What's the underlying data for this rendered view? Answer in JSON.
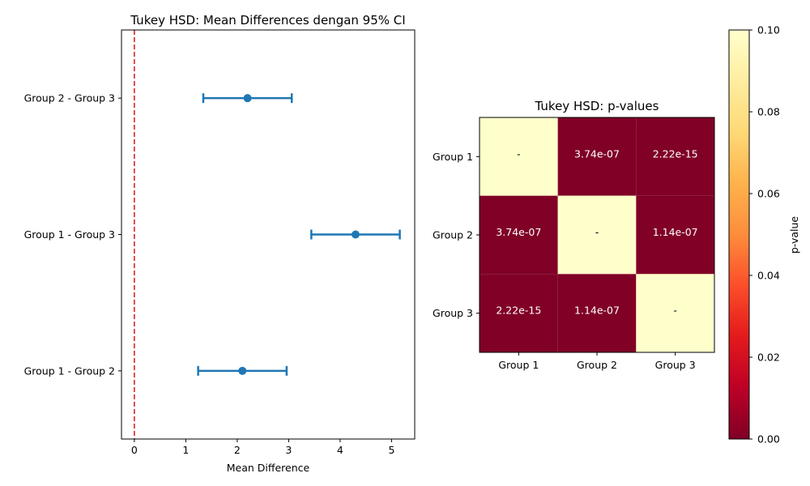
{
  "chart_data": [
    {
      "type": "scatter",
      "title": "Tukey HSD: Mean Differences dengan 95% CI",
      "xlabel": "Mean Difference",
      "ylabel": "",
      "xlim": [
        -0.25,
        5.45
      ],
      "x_ticks": [
        0,
        1,
        2,
        3,
        4,
        5
      ],
      "categories": [
        "Group 1 - Group 2",
        "Group 1 - Group 3",
        "Group 2 - Group 3"
      ],
      "series": [
        {
          "values": [
            2.1,
            4.3,
            2.2
          ],
          "ci_lower": [
            1.24,
            3.44,
            1.34
          ],
          "ci_upper": [
            2.96,
            5.16,
            3.06
          ]
        }
      ],
      "reference_line": {
        "x": 0,
        "style": "dashed",
        "color": "#d62728"
      },
      "grid": false,
      "colors": {
        "series": "#1f77b4"
      }
    },
    {
      "type": "heatmap",
      "title": "Tukey HSD: p-values",
      "x_categories": [
        "Group 1",
        "Group 2",
        "Group 3"
      ],
      "y_categories": [
        "Group 1",
        "Group 2",
        "Group 3"
      ],
      "values": [
        [
          null,
          3.74e-07,
          2.22e-15
        ],
        [
          3.74e-07,
          null,
          1.14e-07
        ],
        [
          2.22e-15,
          1.14e-07,
          null
        ]
      ],
      "cell_labels": [
        [
          "-",
          "3.74e-07",
          "2.22e-15"
        ],
        [
          "3.74e-07",
          "-",
          "1.14e-07"
        ],
        [
          "2.22e-15",
          "1.14e-07",
          "-"
        ]
      ],
      "colorbar": {
        "label": "p-value",
        "range": [
          0,
          0.1
        ],
        "ticks": [
          "0.00",
          "0.02",
          "0.04",
          "0.06",
          "0.08",
          "0.10"
        ],
        "colormap": "YlOrRd_r"
      },
      "grid": false
    }
  ]
}
